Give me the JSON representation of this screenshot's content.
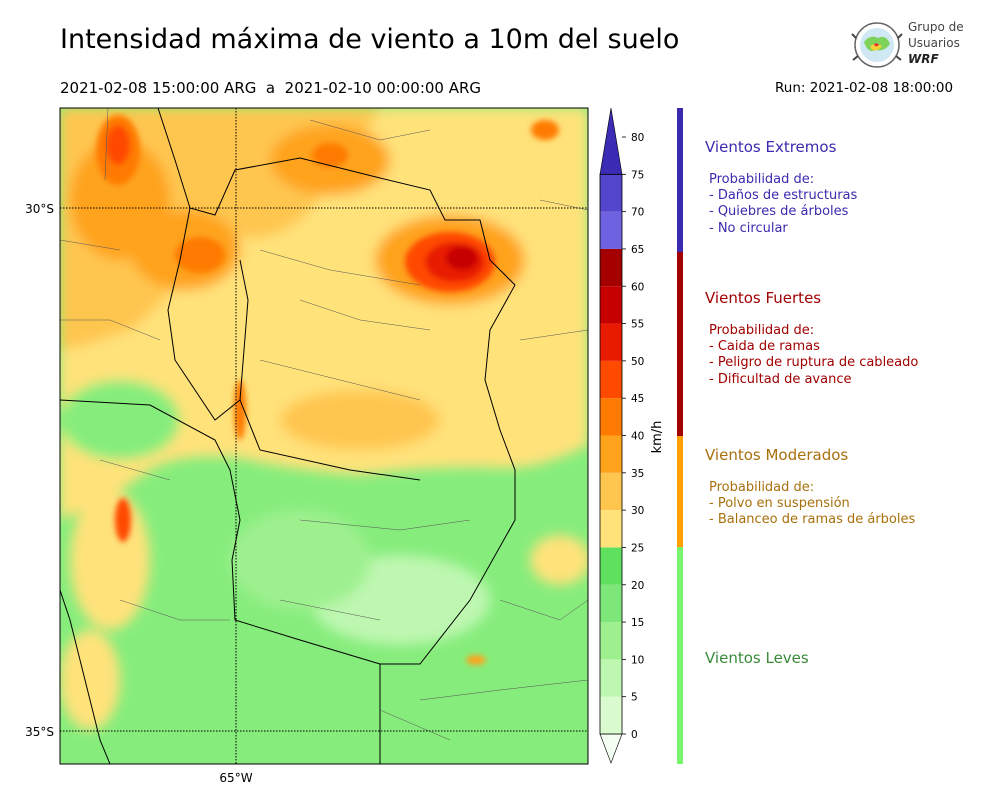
{
  "header": {
    "title": "Intensidad máxima de viento a 10m del suelo",
    "period": "2021-02-08 15:00:00 ARG  a  2021-02-10 00:00:00 ARG",
    "run": "Run: 2021-02-08 18:00:00"
  },
  "logo": {
    "line1": "Grupo de",
    "line2": "Usuarios",
    "line3": "WRF"
  },
  "map": {
    "lat_labels": [
      "30°S",
      "35°S"
    ],
    "lon_labels": [
      "65°W"
    ]
  },
  "colorbar": {
    "unit": "km/h",
    "ticks": [
      "0",
      "5",
      "10",
      "15",
      "20",
      "25",
      "30",
      "35",
      "40",
      "45",
      "50",
      "55",
      "60",
      "65",
      "70",
      "75",
      "80"
    ],
    "colors": [
      "#f2fff2",
      "#d9fbcf",
      "#bef7b0",
      "#9ef08f",
      "#7de879",
      "#5fe05e",
      "#ffe27a",
      "#ffc64f",
      "#ffa31c",
      "#ff7a00",
      "#ff4a00",
      "#e81b00",
      "#c60000",
      "#a50000",
      "#6f62e0",
      "#5446cc",
      "#3c2cb5"
    ]
  },
  "categories": [
    {
      "name": "Vientos Extremos",
      "color": "#3a2aaf",
      "details": [
        "Probabilidad de:",
        "- Daños de estructuras",
        "- Quiebres de árboles",
        "- No circular"
      ]
    },
    {
      "name": "Vientos Fuertes",
      "color": "#a00000",
      "details": [
        "Probabilidad de:",
        "- Caida de ramas",
        "- Peligro de ruptura de cableado",
        "- Dificultad de avance"
      ]
    },
    {
      "name": "Vientos Moderados",
      "color": "#a8700c",
      "details": [
        "Probabilidad de:",
        "- Polvo en suspensión",
        "- Balanceo de ramas de árboles"
      ]
    },
    {
      "name": "Vientos Leves",
      "color": "#3a8a3a",
      "details": []
    }
  ],
  "legend_bar_colors": [
    "#3a2aaf",
    "#a00000",
    "#ffa000",
    "#77f56f"
  ]
}
